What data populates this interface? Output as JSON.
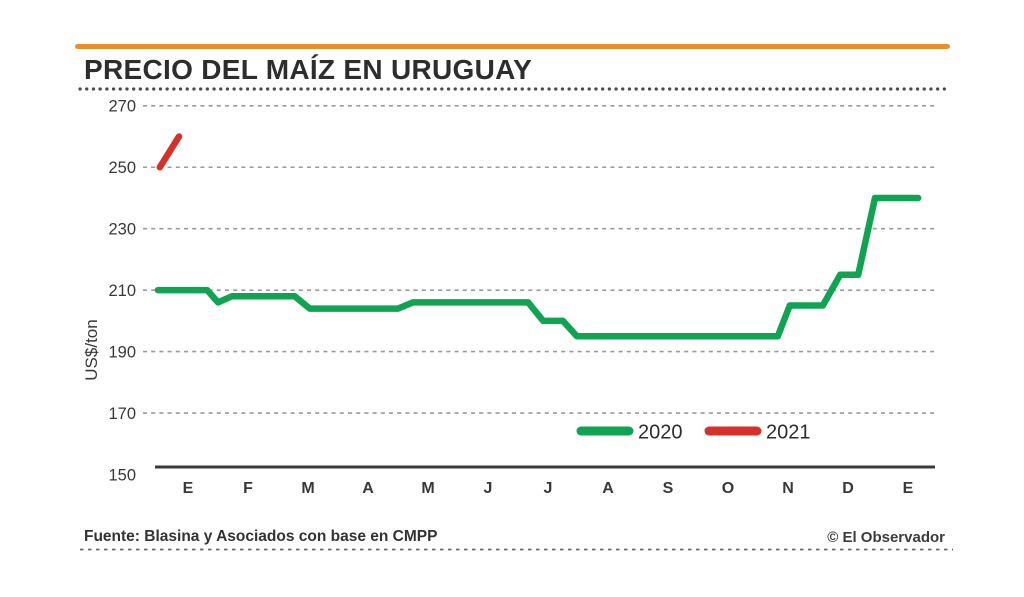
{
  "header": {
    "title": "PRECIO DEL MAÍZ EN URUGUAY"
  },
  "footer": {
    "source": "Fuente: Blasina y Asociados con base en CMPP",
    "credit": "© El Observador"
  },
  "colors": {
    "accent_bar": "#E9902E",
    "series_2020": "#10A351",
    "series_2021": "#D6302B",
    "title_text": "#2D2D2D",
    "tick_text": "#383838",
    "grid_line": "#9A9A9A",
    "axis_line": "#3A3A3A",
    "divider_dots": "#4A4A4A",
    "background": "#FFFFFF"
  },
  "chart_data": {
    "type": "line",
    "title": "PRECIO DEL MAÍZ EN URUGUAY",
    "ylabel": "US$/ton",
    "xlabel": "",
    "ylim": [
      150,
      270
    ],
    "yticks": [
      270,
      250,
      230,
      210,
      190,
      170,
      150
    ],
    "x_tick_labels": [
      "E",
      "F",
      "M",
      "A",
      "M",
      "J",
      "J",
      "A",
      "S",
      "O",
      "N",
      "D",
      "E"
    ],
    "grid": "horizontal dashed gridlines, solid bottom axis",
    "legend": {
      "position": "inside bottom, center-right",
      "entries": [
        "2020",
        "2021"
      ]
    },
    "series": [
      {
        "name": "2020",
        "color": "#10A351",
        "unit": "US$/ton",
        "x_unit": "months from Jan start (axis letters at +0.5)",
        "points": [
          [
            0.0,
            210
          ],
          [
            0.82,
            210
          ],
          [
            1.0,
            206
          ],
          [
            1.23,
            208
          ],
          [
            2.28,
            208
          ],
          [
            2.53,
            204
          ],
          [
            4.0,
            204
          ],
          [
            4.25,
            206
          ],
          [
            6.17,
            206
          ],
          [
            6.42,
            200
          ],
          [
            6.75,
            200
          ],
          [
            6.98,
            195
          ],
          [
            10.33,
            195
          ],
          [
            10.53,
            205
          ],
          [
            11.08,
            205
          ],
          [
            11.37,
            215
          ],
          [
            11.67,
            215
          ],
          [
            11.95,
            240
          ],
          [
            12.67,
            240
          ]
        ]
      },
      {
        "name": "2021",
        "color": "#D6302B",
        "unit": "US$/ton",
        "x_unit": "months from Jan start (axis letters at +0.5)",
        "points": [
          [
            0.03,
            250
          ],
          [
            0.35,
            260
          ]
        ]
      }
    ]
  }
}
